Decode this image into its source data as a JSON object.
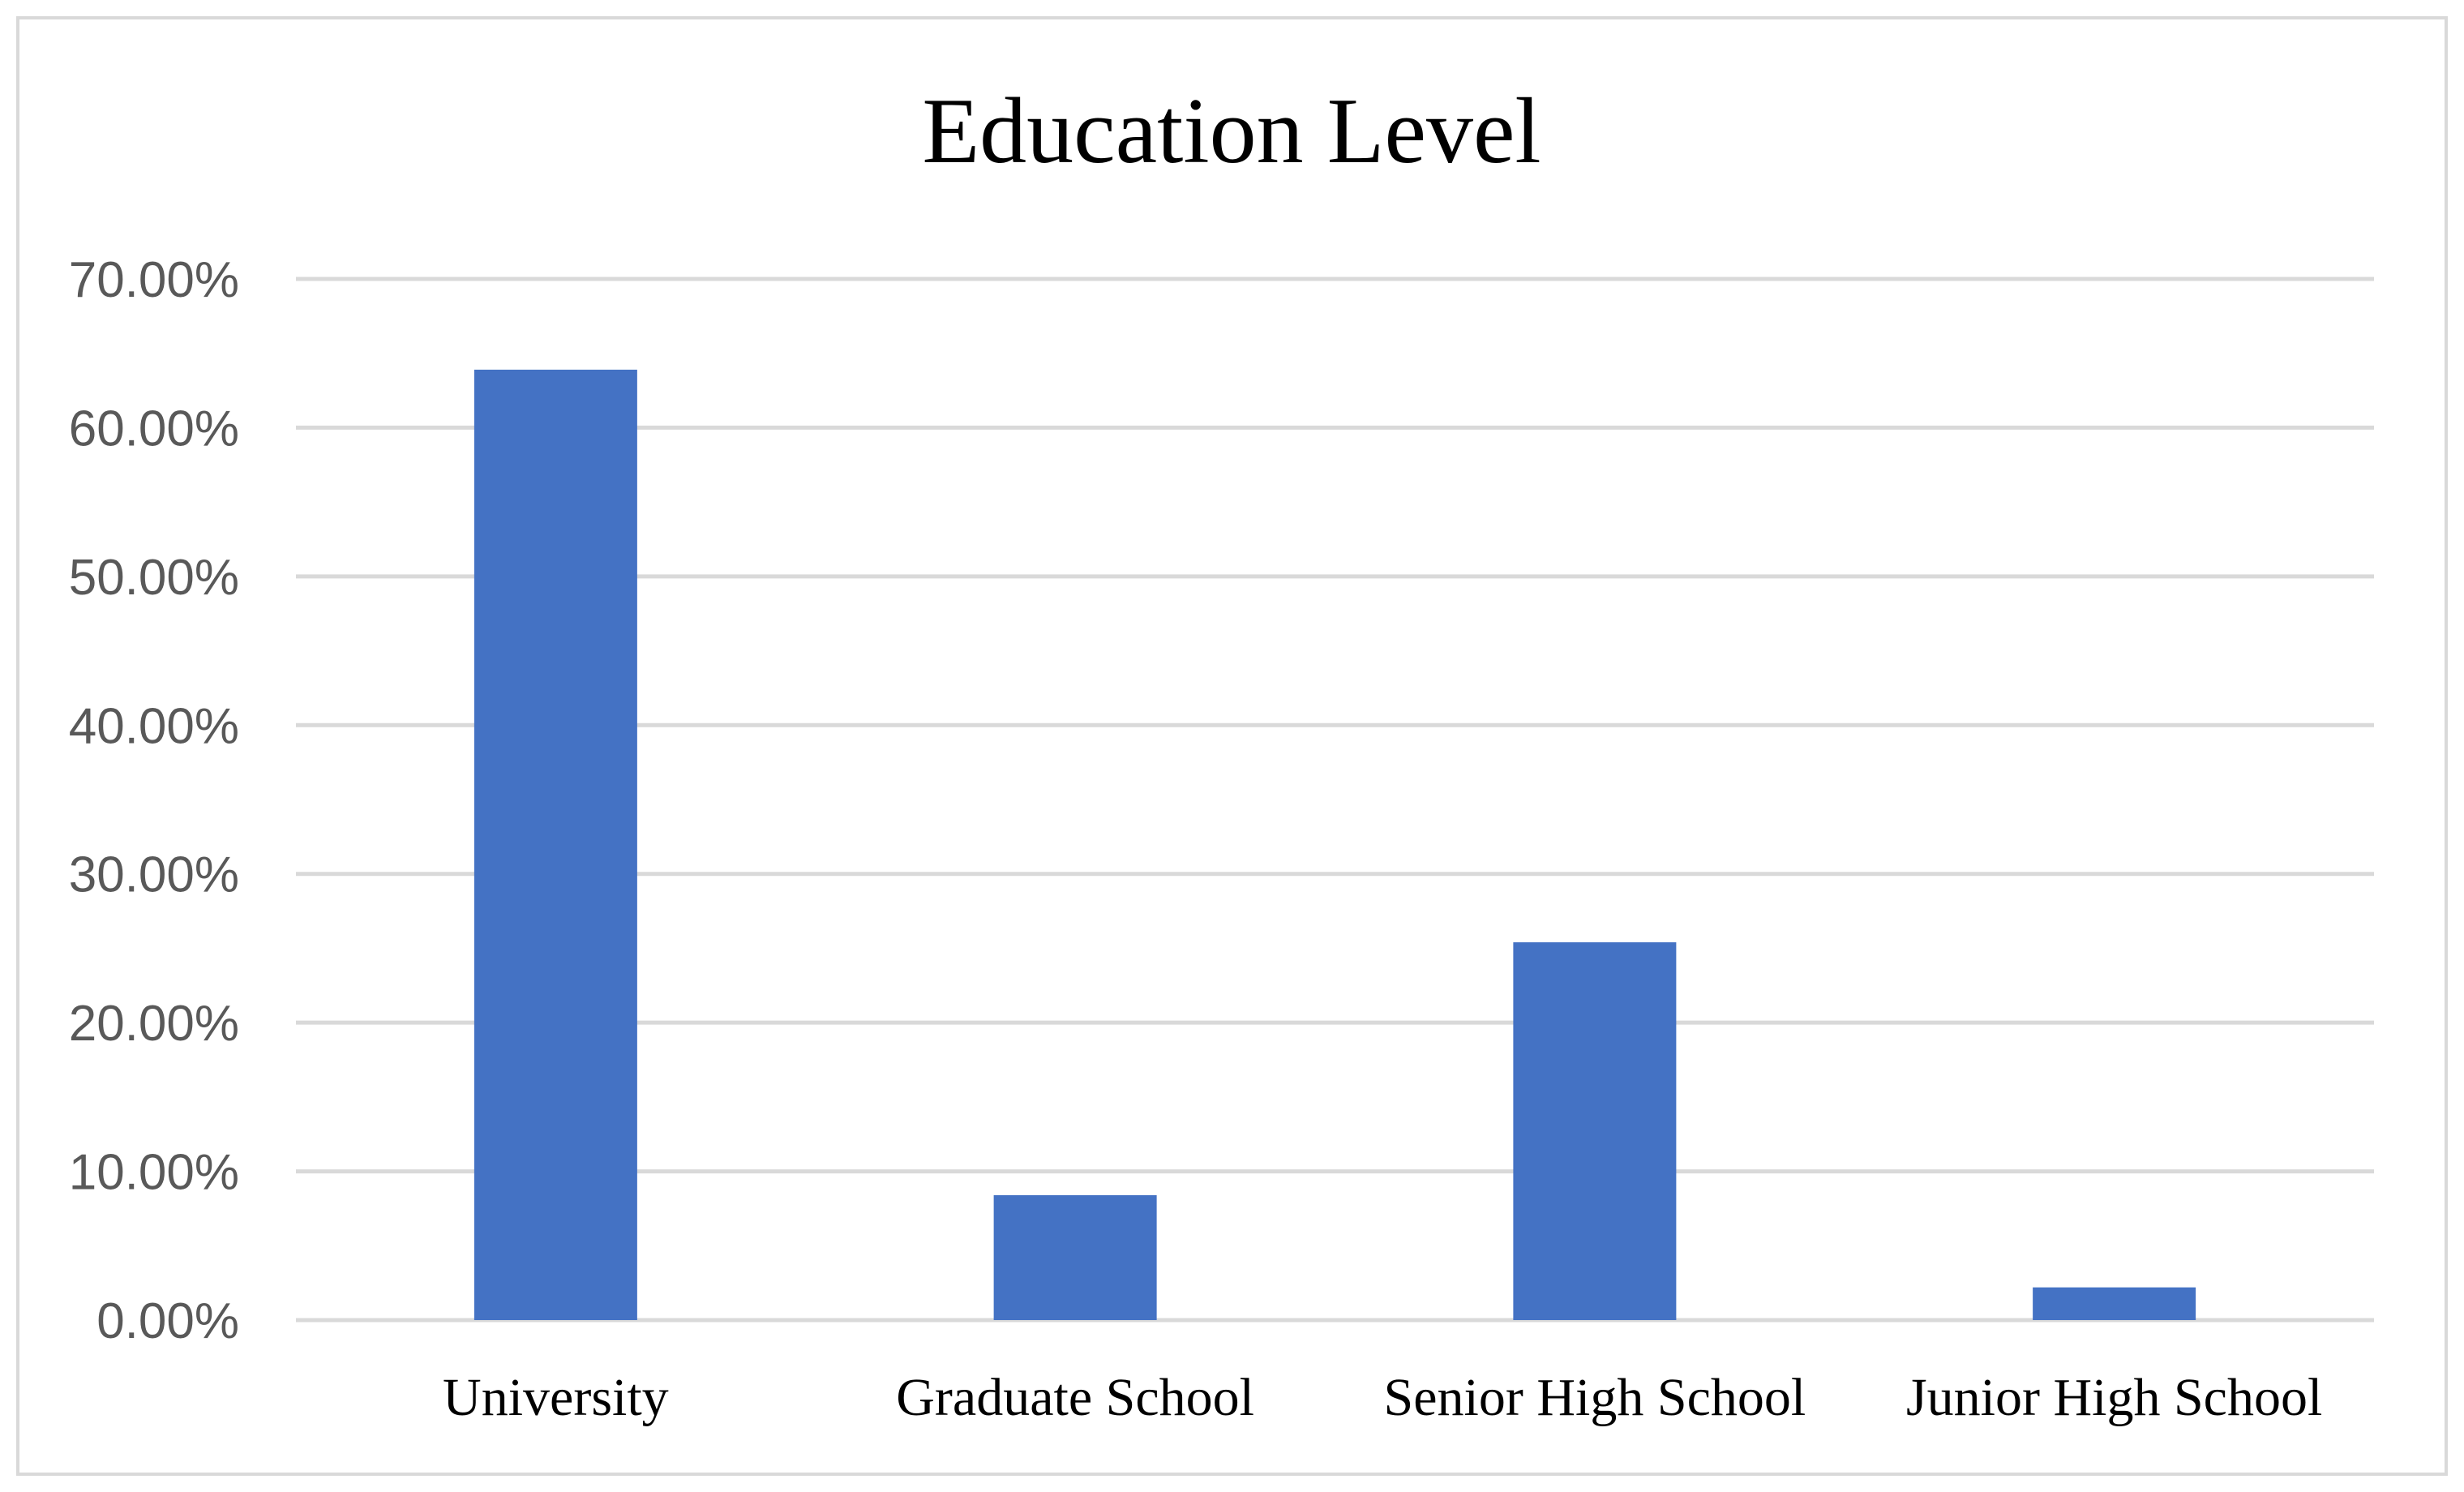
{
  "chart_data": {
    "type": "bar",
    "title": "Education Level",
    "categories": [
      "University",
      "Graduate School",
      "Senior High School",
      "Junior High School"
    ],
    "values": [
      0.639,
      0.084,
      0.254,
      0.022
    ],
    "xlabel": "",
    "ylabel": "",
    "ylim": [
      0,
      0.7
    ],
    "y_ticks": [
      0.0,
      0.1,
      0.2,
      0.3,
      0.4,
      0.5,
      0.6,
      0.7
    ],
    "y_tick_labels": [
      "0.00%",
      "10.00%",
      "20.00%",
      "30.00%",
      "40.00%",
      "50.00%",
      "60.00%",
      "70.00%"
    ],
    "grid": true,
    "legend": "none",
    "bar_color": "#4472c4",
    "grid_color": "#d9d9d9"
  }
}
